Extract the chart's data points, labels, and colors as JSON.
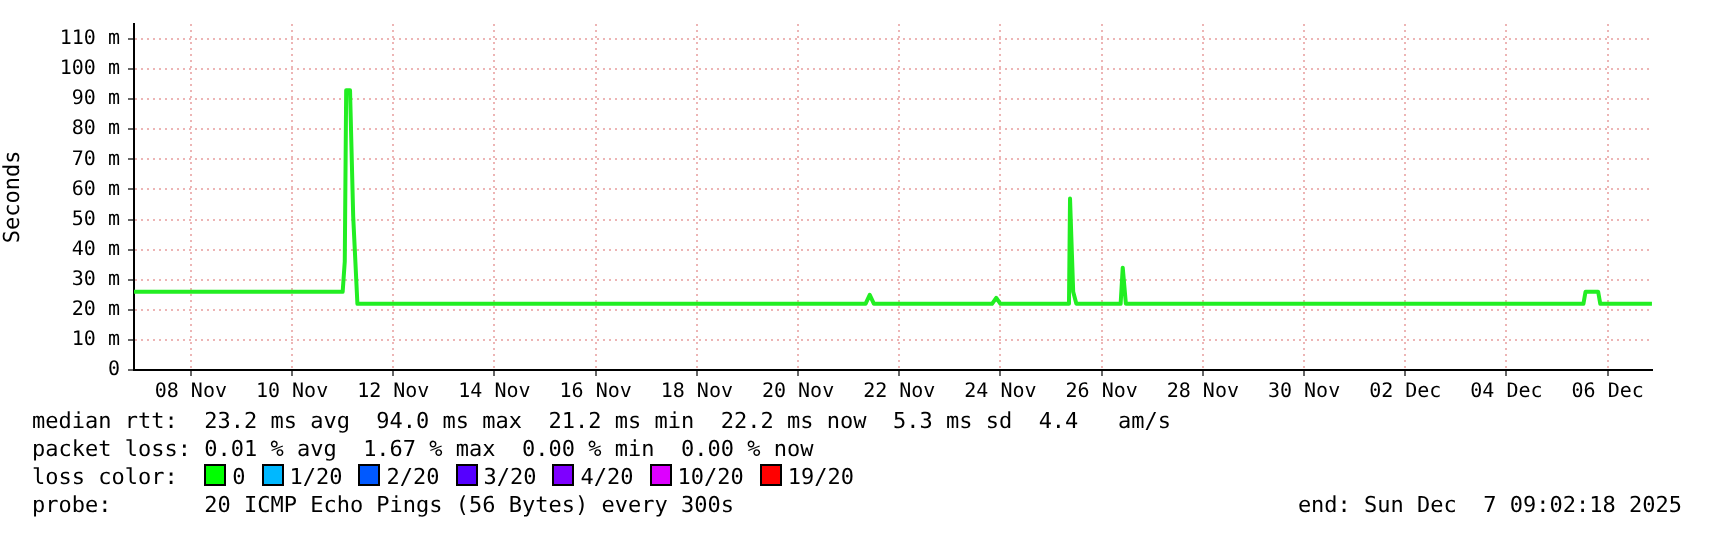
{
  "chart_data": {
    "type": "line",
    "ylabel": "Seconds",
    "grid": true,
    "legend": false,
    "marker": "none",
    "line_style": "solid",
    "xlim": [
      "2025-11-07T09:02",
      "2025-12-07T09:02"
    ],
    "xticks": [
      {
        "value": "2025-11-08T12:00",
        "label": "08 Nov"
      },
      {
        "value": "2025-11-10T12:00",
        "label": "10 Nov"
      },
      {
        "value": "2025-11-12T12:00",
        "label": "12 Nov"
      },
      {
        "value": "2025-11-14T12:00",
        "label": "14 Nov"
      },
      {
        "value": "2025-11-16T12:00",
        "label": "16 Nov"
      },
      {
        "value": "2025-11-18T12:00",
        "label": "18 Nov"
      },
      {
        "value": "2025-11-20T12:00",
        "label": "20 Nov"
      },
      {
        "value": "2025-11-22T12:00",
        "label": "22 Nov"
      },
      {
        "value": "2025-11-24T12:00",
        "label": "24 Nov"
      },
      {
        "value": "2025-11-26T12:00",
        "label": "26 Nov"
      },
      {
        "value": "2025-11-28T12:00",
        "label": "28 Nov"
      },
      {
        "value": "2025-11-30T12:00",
        "label": "30 Nov"
      },
      {
        "value": "2025-12-02T12:00",
        "label": "02 Dec"
      },
      {
        "value": "2025-12-04T12:00",
        "label": "04 Dec"
      },
      {
        "value": "2025-12-06T12:00",
        "label": "06 Dec"
      }
    ],
    "ylim": [
      0,
      115
    ],
    "yticks": [
      0,
      {
        "value": 10,
        "label": "10 m"
      },
      {
        "value": 20,
        "label": "20 m"
      },
      {
        "value": 30,
        "label": "30 m"
      },
      {
        "value": 40,
        "label": "40 m"
      },
      {
        "value": 50,
        "label": "50 m"
      },
      {
        "value": 60,
        "label": "60 m"
      },
      {
        "value": 70,
        "label": "70 m"
      },
      {
        "value": 80,
        "label": "80 m"
      },
      {
        "value": 90,
        "label": "90 m"
      },
      {
        "value": 100,
        "label": "100 m"
      },
      {
        "value": 110,
        "label": "110 m"
      }
    ],
    "x": [
      "2025-11-07T09:02",
      "2025-11-11T12:00",
      "2025-11-11T13:00",
      "2025-11-11T13:40",
      "2025-11-11T15:30",
      "2025-11-11T17:00",
      "2025-11-11T19:00",
      "2025-11-21T20:00",
      "2025-11-21T22:00",
      "2025-11-22T00:00",
      "2025-11-24T08:00",
      "2025-11-24T10:00",
      "2025-11-24T12:00",
      "2025-11-25T20:30",
      "2025-11-25T21:00",
      "2025-11-25T22:30",
      "2025-11-26T00:00",
      "2025-11-26T21:00",
      "2025-11-26T22:00",
      "2025-11-26T23:30",
      "2025-12-06T00:30",
      "2025-12-06T01:30",
      "2025-12-06T07:30",
      "2025-12-06T08:30",
      "2025-12-07T09:00"
    ],
    "series": [
      {
        "color": "#22ee22",
        "values": [
          26,
          26,
          36,
          93,
          93,
          51,
          22,
          22,
          25,
          22,
          22,
          24,
          22,
          22,
          57,
          26,
          22,
          22,
          34,
          22,
          22,
          26,
          26,
          22,
          22
        ]
      }
    ],
    "annotations": [
      "median rtt:  23.2 ms avg  94.0 ms max  21.2 ms min  22.2 ms now  5.3 ms sd  4.4   am/s",
      "packet loss: 0.01 % avg  1.67 % max  0.00 % min  0.00 % now",
      "loss color:",
      "0",
      "1/20",
      "2/20",
      "3/20",
      "4/20",
      "10/20",
      "19/20",
      "probe:       20 ICMP Echo Pings (56 Bytes) every 300s",
      "end: Sun Dec  7 09:02:18 2025"
    ]
  }
}
